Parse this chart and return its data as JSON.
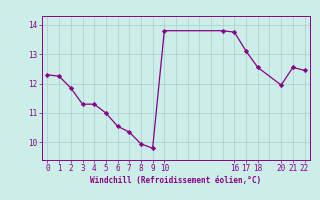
{
  "x": [
    0,
    1,
    2,
    3,
    4,
    5,
    6,
    7,
    8,
    9,
    10,
    15,
    16,
    17,
    18,
    20,
    21,
    22
  ],
  "y": [
    12.3,
    12.25,
    11.85,
    11.3,
    11.3,
    11.0,
    10.55,
    10.35,
    9.95,
    9.8,
    13.8,
    13.8,
    13.75,
    13.1,
    12.55,
    11.95,
    12.55,
    12.45
  ],
  "line_color": "#880088",
  "marker_color": "#880088",
  "bg_color": "#cceee8",
  "grid_color": "#aacccc",
  "xlabel": "Windchill (Refroidissement éolien,°C)",
  "xtick_positions": [
    0,
    1,
    2,
    3,
    4,
    5,
    6,
    7,
    8,
    9,
    10,
    16,
    17,
    18,
    20,
    21,
    22
  ],
  "xtick_labels": [
    "0",
    "1",
    "2",
    "3",
    "4",
    "5",
    "6",
    "7",
    "8",
    "9",
    "10",
    "16",
    "17",
    "18",
    "20",
    "21",
    "22"
  ],
  "yticks": [
    10,
    11,
    12,
    13,
    14
  ],
  "ylim": [
    9.4,
    14.3
  ],
  "xlim": [
    -0.5,
    22.5
  ],
  "axis_fontsize": 5.5,
  "tick_fontsize": 5.5,
  "label_color": "#880088"
}
